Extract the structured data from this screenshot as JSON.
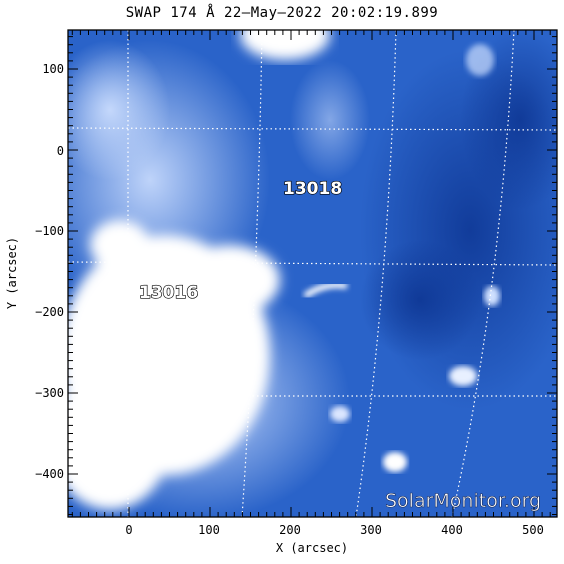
{
  "title": "SWAP 174 Å 22–May–2022 20:02:19.899",
  "x_axis": {
    "label": "X (arcsec)",
    "ticks": [
      "0",
      "100",
      "200",
      "300",
      "400",
      "500"
    ]
  },
  "y_axis": {
    "label": "Y (arcsec)",
    "ticks": [
      "100",
      "0",
      "−100",
      "−200",
      "−300",
      "−400"
    ]
  },
  "active_regions": [
    {
      "id": "13018"
    },
    {
      "id": "13016"
    }
  ],
  "watermark": "SolarMonitor.org",
  "colors": {
    "background": "#ffffff",
    "image_base": "#2a63c9",
    "image_dark": "#0f3a9a",
    "image_bright": "#ffffff",
    "grid": "#ffffff"
  }
}
